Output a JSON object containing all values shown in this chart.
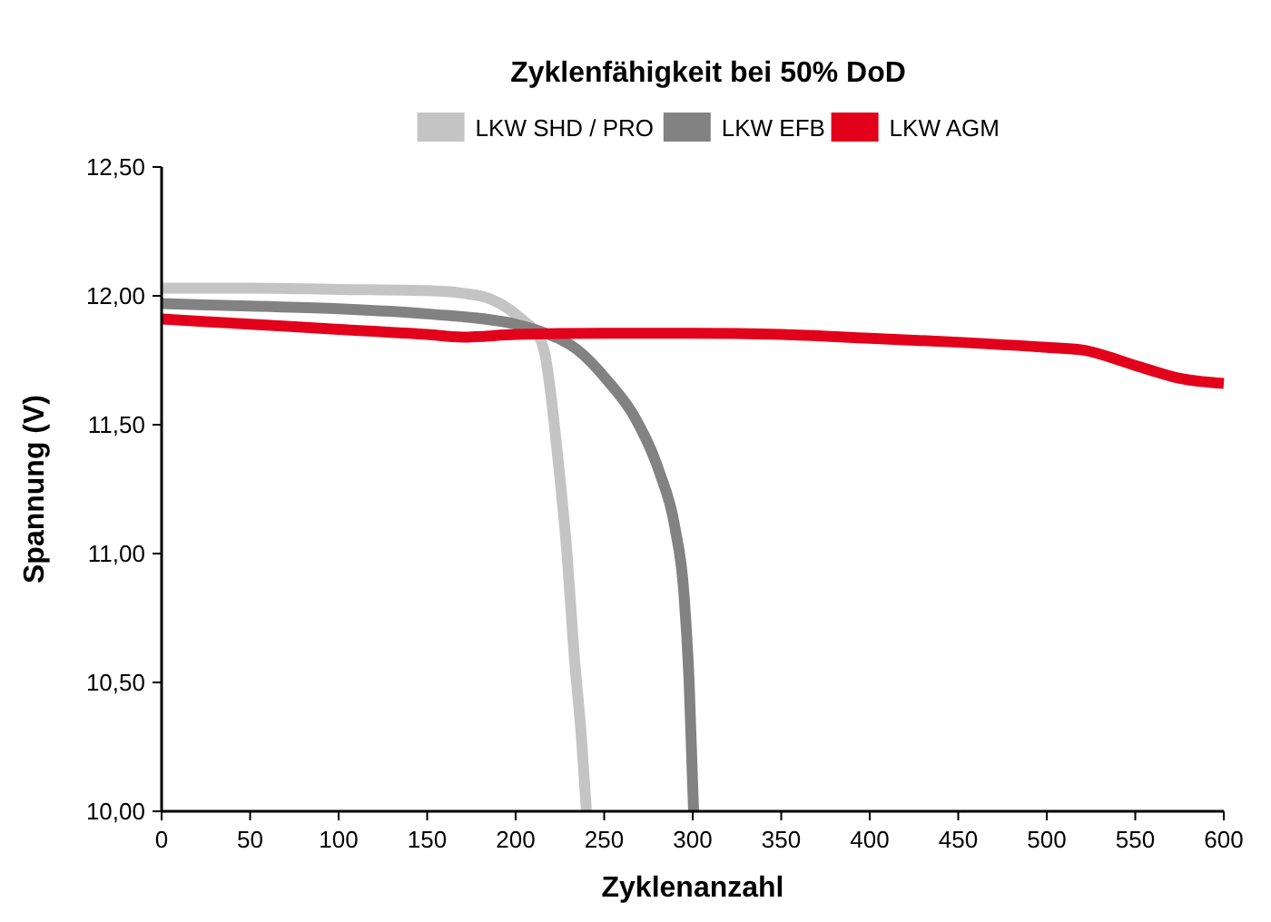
{
  "chart_data": {
    "type": "line",
    "title": "Zyklenfähigkeit bei 50% DoD",
    "xlabel": "Zyklenanzahl",
    "ylabel": "Spannung (V)",
    "xlim": [
      0,
      600
    ],
    "xticks": [
      0,
      50,
      100,
      150,
      200,
      250,
      300,
      350,
      400,
      450,
      500,
      550,
      600
    ],
    "ylim": [
      10,
      12.5
    ],
    "yticks": [
      {
        "value": 10,
        "label": "10,00"
      },
      {
        "value": 10.5,
        "label": "10,50"
      },
      {
        "value": 11,
        "label": "11,00"
      },
      {
        "value": 11.5,
        "label": "11,50"
      },
      {
        "value": 12,
        "label": "12,00"
      },
      {
        "value": 12.5,
        "label": "12,50"
      }
    ],
    "legend": "top",
    "grid": false,
    "marker": "none",
    "line_style": "solid",
    "series": [
      {
        "name": "LKW SHD / PRO",
        "color": "#c4c4c4",
        "x": [
          0,
          50,
          100,
          150,
          170,
          185,
          196,
          205,
          210,
          216,
          224.6,
          229,
          233,
          237,
          240
        ],
        "values": [
          12.03,
          12.03,
          12.025,
          12.02,
          12.01,
          11.99,
          11.95,
          11.9,
          11.87,
          11.79,
          11.32,
          11.0,
          10.61,
          10.3,
          10.0
        ]
      },
      {
        "name": "LKW EFB",
        "color": "#828282",
        "x": [
          0,
          50,
          100,
          150,
          200,
          215,
          235,
          252,
          268,
          281,
          290,
          295,
          298,
          300.5
        ],
        "values": [
          11.97,
          11.96,
          11.95,
          11.93,
          11.89,
          11.86,
          11.79,
          11.67,
          11.52,
          11.32,
          11.1,
          10.85,
          10.5,
          10.0
        ]
      },
      {
        "name": "LKW AGM",
        "color": "#e2001a",
        "x": [
          0,
          50,
          100,
          150,
          170,
          200,
          250,
          300,
          350,
          400,
          450,
          500,
          520,
          550,
          575,
          600
        ],
        "values": [
          11.91,
          11.89,
          11.87,
          11.85,
          11.84,
          11.85,
          11.855,
          11.855,
          11.85,
          11.835,
          11.82,
          11.8,
          11.79,
          11.73,
          11.68,
          11.66
        ]
      }
    ]
  }
}
